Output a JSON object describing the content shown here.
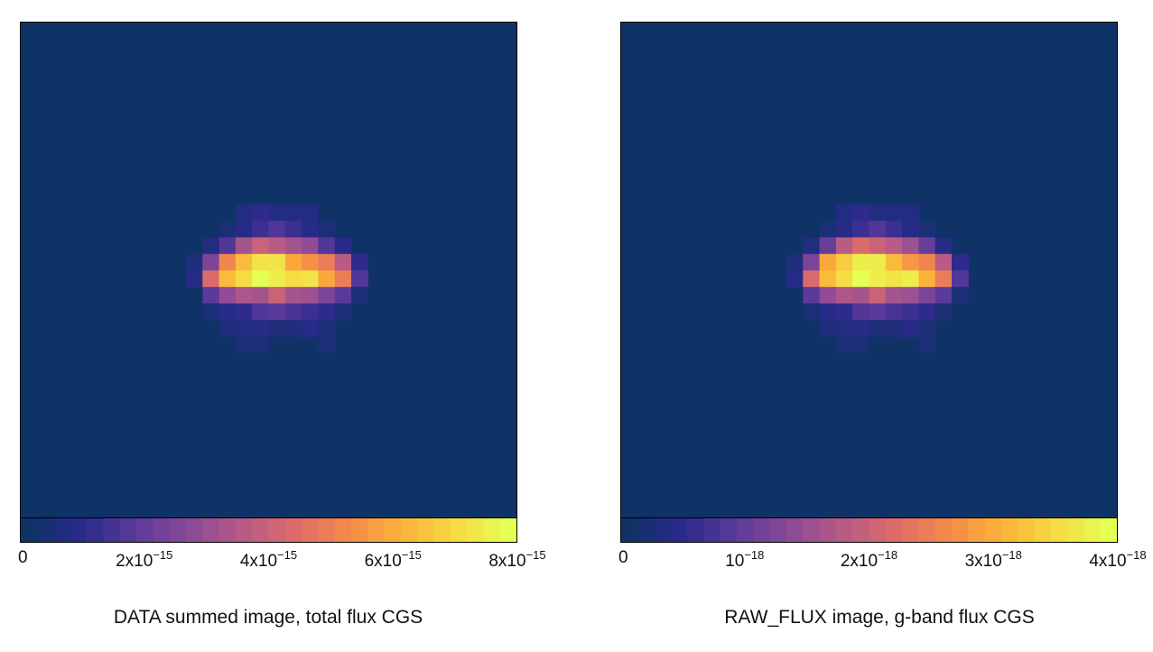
{
  "chart_data": [
    {
      "type": "heatmap",
      "caption": "DATA summed image, total flux CGS",
      "colorbar": {
        "range": [
          0,
          8e-15
        ],
        "ticks": [
          {
            "value": 0,
            "mantissa": "0",
            "exponent": ""
          },
          {
            "value": 2e-15,
            "mantissa": "2x10",
            "exponent": "−15"
          },
          {
            "value": 4e-15,
            "mantissa": "4x10",
            "exponent": "−15"
          },
          {
            "value": 6e-15,
            "mantissa": "6x10",
            "exponent": "−15"
          },
          {
            "value": 8e-15,
            "mantissa": "8x10",
            "exponent": "−15"
          }
        ]
      },
      "grid_size": [
        30,
        30
      ],
      "nonzero_origin": {
        "col": 10,
        "row": 11
      },
      "values_fraction_of_max": [
        [
          0,
          0,
          0,
          0.08,
          0.12,
          0.08,
          0.08,
          0.08,
          0,
          0,
          0
        ],
        [
          0,
          0,
          0.05,
          0.1,
          0.15,
          0.2,
          0.15,
          0.1,
          0.05,
          0,
          0
        ],
        [
          0,
          0.08,
          0.2,
          0.4,
          0.5,
          0.45,
          0.4,
          0.35,
          0.2,
          0.1,
          0
        ],
        [
          0.06,
          0.3,
          0.65,
          0.8,
          0.92,
          0.92,
          0.75,
          0.68,
          0.62,
          0.45,
          0.12
        ],
        [
          0.1,
          0.55,
          0.8,
          0.9,
          1.0,
          0.95,
          0.9,
          0.92,
          0.75,
          0.62,
          0.2
        ],
        [
          0,
          0.22,
          0.35,
          0.42,
          0.4,
          0.5,
          0.4,
          0.38,
          0.3,
          0.22,
          0.05
        ],
        [
          0,
          0.05,
          0.1,
          0.12,
          0.2,
          0.22,
          0.18,
          0.15,
          0.12,
          0.05,
          0
        ],
        [
          0,
          0,
          0.06,
          0.08,
          0.1,
          0.06,
          0.06,
          0.1,
          0.05,
          0,
          0
        ],
        [
          0,
          0,
          0,
          0.05,
          0.05,
          0,
          0,
          0,
          0.05,
          0,
          0
        ]
      ]
    },
    {
      "type": "heatmap",
      "caption": "RAW_FLUX image, g-band flux CGS",
      "colorbar": {
        "range": [
          0,
          4e-18
        ],
        "ticks": [
          {
            "value": 0,
            "mantissa": "0",
            "exponent": ""
          },
          {
            "value": 1e-18,
            "mantissa": "10",
            "exponent": "−18"
          },
          {
            "value": 2e-18,
            "mantissa": "2x10",
            "exponent": "−18"
          },
          {
            "value": 3e-18,
            "mantissa": "3x10",
            "exponent": "−18"
          },
          {
            "value": 4e-18,
            "mantissa": "4x10",
            "exponent": "−18"
          }
        ]
      },
      "grid_size": [
        30,
        30
      ],
      "nonzero_origin": {
        "col": 10,
        "row": 11
      },
      "values_fraction_of_max": [
        [
          0,
          0,
          0,
          0.08,
          0.12,
          0.08,
          0.08,
          0.08,
          0,
          0,
          0
        ],
        [
          0,
          0,
          0.05,
          0.1,
          0.15,
          0.2,
          0.15,
          0.1,
          0.05,
          0,
          0
        ],
        [
          0,
          0.08,
          0.25,
          0.45,
          0.55,
          0.5,
          0.45,
          0.38,
          0.25,
          0.1,
          0
        ],
        [
          0.06,
          0.3,
          0.75,
          0.85,
          0.95,
          0.95,
          0.8,
          0.7,
          0.65,
          0.45,
          0.12
        ],
        [
          0.1,
          0.55,
          0.8,
          0.9,
          1.0,
          0.95,
          0.92,
          0.95,
          0.78,
          0.62,
          0.2
        ],
        [
          0,
          0.22,
          0.35,
          0.42,
          0.4,
          0.5,
          0.4,
          0.38,
          0.3,
          0.22,
          0.05
        ],
        [
          0,
          0.05,
          0.1,
          0.12,
          0.2,
          0.22,
          0.18,
          0.15,
          0.12,
          0.05,
          0
        ],
        [
          0,
          0,
          0.06,
          0.08,
          0.1,
          0.06,
          0.06,
          0.1,
          0.05,
          0,
          0
        ],
        [
          0,
          0,
          0,
          0.05,
          0.05,
          0,
          0,
          0,
          0.05,
          0,
          0
        ]
      ]
    }
  ],
  "colors": {
    "colormap": [
      "#0f3366",
      "#2a2a8c",
      "#5b3a9a",
      "#8a4a98",
      "#b65a86",
      "#dd6c6a",
      "#f58a48",
      "#fbb23a",
      "#f7d944",
      "#e5ff52"
    ],
    "background": "#0f3366"
  }
}
